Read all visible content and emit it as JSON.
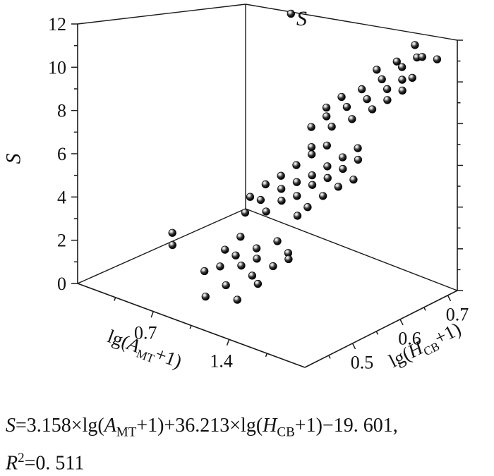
{
  "chart_data": {
    "type": "scatter",
    "dimensions": "3d",
    "title": "S",
    "axes": {
      "x": {
        "label_segments": [
          {
            "k": "n",
            "t": "lg("
          },
          {
            "k": "i",
            "t": "A"
          },
          {
            "k": "sub",
            "t": "MT"
          },
          {
            "k": "n",
            "t": "+1)"
          }
        ],
        "label_plain": "lg(AMT+1)",
        "range": [
          0,
          2.1
        ],
        "major_ticks": [
          0.7,
          1.4
        ],
        "tick_labels": [
          "0.7",
          "1.4"
        ],
        "minor_ticks": [
          0.35,
          1.05,
          1.75
        ]
      },
      "y": {
        "label_segments": [
          {
            "k": "n",
            "t": "lg("
          },
          {
            "k": "i",
            "t": "H"
          },
          {
            "k": "sub",
            "t": "CB"
          },
          {
            "k": "n",
            "t": "+1)"
          }
        ],
        "label_plain": "lg(HCB+1)",
        "range": [
          0.4,
          0.72
        ],
        "major_ticks": [
          0.5,
          0.6,
          0.7
        ],
        "tick_labels": [
          "0.5",
          "0.6",
          "0.7"
        ],
        "minor_ticks": [
          0.45,
          0.55,
          0.65
        ]
      },
      "z": {
        "label": "S",
        "range": [
          0,
          12
        ],
        "major_ticks": [
          0,
          2,
          4,
          6,
          8,
          10,
          12
        ],
        "tick_labels": [
          "0",
          "2",
          "4",
          "6",
          "8",
          "10",
          "12"
        ],
        "minor_ticks": [
          1,
          3,
          5,
          7,
          9,
          11
        ]
      }
    },
    "point_color": "#000000",
    "points": [
      [
        0.75,
        0.49,
        1.0
      ],
      [
        0.85,
        0.5,
        1.3
      ],
      [
        0.95,
        0.51,
        1.9
      ],
      [
        1.05,
        0.5,
        1.7
      ],
      [
        1.1,
        0.52,
        2.4
      ],
      [
        1.2,
        0.49,
        1.6
      ],
      [
        1.25,
        0.53,
        2.9
      ],
      [
        1.35,
        0.5,
        2.2
      ],
      [
        1.4,
        0.52,
        2.7
      ],
      [
        1.0,
        0.48,
        0.9
      ],
      [
        1.15,
        0.51,
        2.1
      ],
      [
        0.9,
        0.53,
        2.5
      ],
      [
        1.3,
        0.48,
        1.5
      ],
      [
        1.45,
        0.51,
        2.6
      ],
      [
        0.8,
        0.52,
        1.8
      ],
      [
        0.35,
        0.51,
        1.9
      ],
      [
        0.4,
        0.5,
        1.5
      ],
      [
        0.95,
        0.45,
        0.6
      ],
      [
        1.2,
        0.46,
        0.8
      ],
      [
        0.8,
        0.56,
        3.2
      ],
      [
        0.9,
        0.57,
        3.9
      ],
      [
        1.0,
        0.56,
        3.6
      ],
      [
        1.05,
        0.58,
        4.6
      ],
      [
        1.1,
        0.57,
        4.2
      ],
      [
        1.15,
        0.59,
        5.0
      ],
      [
        1.2,
        0.58,
        4.5
      ],
      [
        1.25,
        0.6,
        5.4
      ],
      [
        1.3,
        0.59,
        5.1
      ],
      [
        1.35,
        0.61,
        5.9
      ],
      [
        1.4,
        0.6,
        5.5
      ],
      [
        1.45,
        0.62,
        6.4
      ],
      [
        1.5,
        0.61,
        6.0
      ],
      [
        1.55,
        0.63,
        6.9
      ],
      [
        1.6,
        0.62,
        6.5
      ],
      [
        0.95,
        0.6,
        4.9
      ],
      [
        1.05,
        0.61,
        5.5
      ],
      [
        1.15,
        0.62,
        6.1
      ],
      [
        1.25,
        0.63,
        6.6
      ],
      [
        1.35,
        0.57,
        4.3
      ],
      [
        1.45,
        0.58,
        4.9
      ],
      [
        1.55,
        0.59,
        5.4
      ],
      [
        0.85,
        0.59,
        4.4
      ],
      [
        0.75,
        0.58,
        3.7
      ],
      [
        1.65,
        0.6,
        5.8
      ],
      [
        1.1,
        0.63,
        6.3
      ],
      [
        1.3,
        0.56,
        3.9
      ],
      [
        1.0,
        0.65,
        7.0
      ],
      [
        1.1,
        0.66,
        7.6
      ],
      [
        1.2,
        0.65,
        7.3
      ],
      [
        1.25,
        0.67,
        8.2
      ],
      [
        1.35,
        0.66,
        7.8
      ],
      [
        1.4,
        0.68,
        8.7
      ],
      [
        1.5,
        0.67,
        8.4
      ],
      [
        1.55,
        0.69,
        9.3
      ],
      [
        1.6,
        0.68,
        8.9
      ],
      [
        1.65,
        0.7,
        9.8
      ],
      [
        1.7,
        0.69,
        9.4
      ],
      [
        1.45,
        0.7,
        9.6
      ],
      [
        1.3,
        0.69,
        9.0
      ],
      [
        1.15,
        0.68,
        8.5
      ],
      [
        1.05,
        0.67,
        7.9
      ],
      [
        1.6,
        0.71,
        10.3
      ],
      [
        1.7,
        0.72,
        10.8
      ],
      [
        1.5,
        0.72,
        10.4
      ],
      [
        1.35,
        0.71,
        9.9
      ],
      [
        1.75,
        0.7,
        10.0
      ],
      [
        0.45,
        0.72,
        11.9
      ],
      [
        1.68,
        0.72,
        11.4
      ],
      [
        1.8,
        0.71,
        11.0
      ],
      [
        1.9,
        0.72,
        10.9
      ]
    ],
    "regression_equation_plain": "S=3.158×lg(AMT+1)+36.213×lg(HCB+1)−19. 601, R2=0. 511"
  },
  "caption": {
    "lines": [
      [
        {
          "k": "i",
          "t": "S"
        },
        {
          "k": "n",
          "t": "=3.158×lg("
        },
        {
          "k": "i",
          "t": "A"
        },
        {
          "k": "sub",
          "t": "MT"
        },
        {
          "k": "n",
          "t": "+1)+36.213×lg("
        },
        {
          "k": "i",
          "t": "H"
        },
        {
          "k": "sub",
          "t": "CB"
        },
        {
          "k": "n",
          "t": "+1)−19. 601,"
        }
      ],
      [
        {
          "k": "i",
          "t": "R"
        },
        {
          "k": "sup",
          "t": "2"
        },
        {
          "k": "n",
          "t": "=0. 511"
        }
      ]
    ]
  }
}
